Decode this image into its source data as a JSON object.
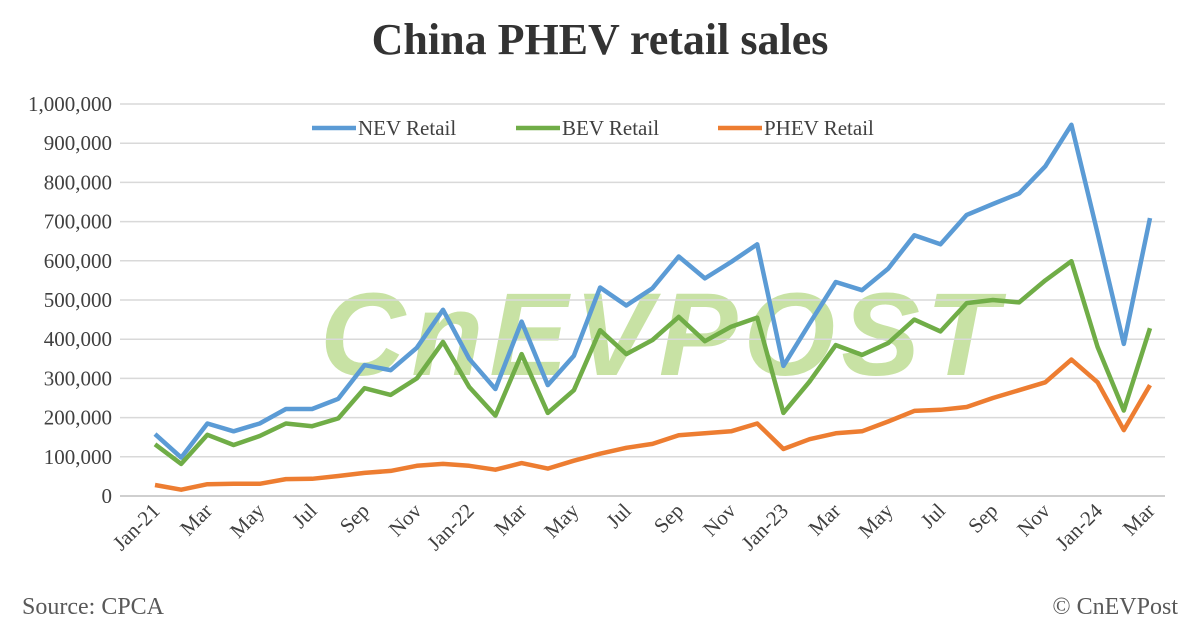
{
  "chart_data": {
    "type": "line",
    "title": "China PHEV retail sales",
    "xlabel": "",
    "ylabel": "",
    "ylim": [
      0,
      1000000
    ],
    "yticks": [
      "0",
      "100,000",
      "200,000",
      "300,000",
      "400,000",
      "500,000",
      "600,000",
      "700,000",
      "800,000",
      "900,000",
      "1,000,000"
    ],
    "xtick_labels": [
      "Jan-21",
      "Mar",
      "May",
      "Jul",
      "Sep",
      "Nov",
      "Jan-22",
      "Mar",
      "May",
      "Jul",
      "Sep",
      "Nov",
      "Jan-23",
      "Mar",
      "May",
      "Jul",
      "Sep",
      "Nov",
      "Jan-24",
      "Mar"
    ],
    "x": [
      "Jan-21",
      "Feb-21",
      "Mar-21",
      "Apr-21",
      "May-21",
      "Jun-21",
      "Jul-21",
      "Aug-21",
      "Sep-21",
      "Oct-21",
      "Nov-21",
      "Dec-21",
      "Jan-22",
      "Feb-22",
      "Mar-22",
      "Apr-22",
      "May-22",
      "Jun-22",
      "Jul-22",
      "Aug-22",
      "Sep-22",
      "Oct-22",
      "Nov-22",
      "Dec-22",
      "Jan-23",
      "Feb-23",
      "Mar-23",
      "Apr-23",
      "May-23",
      "Jun-23",
      "Jul-23",
      "Aug-23",
      "Sep-23",
      "Oct-23",
      "Nov-23",
      "Dec-23",
      "Jan-24",
      "Feb-24",
      "Mar-24"
    ],
    "grid": true,
    "legend_position": "top",
    "series": [
      {
        "name": "NEV Retail",
        "color": "#5b9bd5",
        "values": [
          158000,
          98000,
          185000,
          165000,
          185000,
          222000,
          222000,
          248000,
          334000,
          321000,
          378000,
          475000,
          350000,
          273000,
          445000,
          283000,
          358000,
          532000,
          486000,
          530000,
          611000,
          555000,
          597000,
          642000,
          332000,
          440000,
          546000,
          525000,
          580000,
          665000,
          642000,
          717000,
          745000,
          772000,
          841000,
          947000,
          670000,
          388000,
          709000
        ]
      },
      {
        "name": "BEV Retail",
        "color": "#70ad47",
        "values": [
          132000,
          82000,
          156000,
          130000,
          153000,
          185000,
          178000,
          198000,
          275000,
          258000,
          300000,
          393000,
          278000,
          205000,
          362000,
          212000,
          270000,
          423000,
          362000,
          398000,
          457000,
          395000,
          432000,
          455000,
          212000,
          292000,
          385000,
          360000,
          390000,
          450000,
          420000,
          492000,
          500000,
          494000,
          550000,
          599000,
          380000,
          218000,
          428000
        ]
      },
      {
        "name": "PHEV Retail",
        "color": "#ed7d31",
        "values": [
          28000,
          16000,
          30000,
          31000,
          31000,
          43000,
          44000,
          51000,
          59000,
          64000,
          77000,
          82000,
          77000,
          67000,
          84000,
          70000,
          90000,
          108000,
          123000,
          133000,
          155000,
          160000,
          165000,
          185000,
          120000,
          145000,
          160000,
          165000,
          190000,
          217000,
          220000,
          227000,
          250000,
          270000,
          290000,
          348000,
          290000,
          168000,
          283000
        ]
      }
    ]
  },
  "footer": {
    "source": "Source: CPCA",
    "credit": "© CnEVPost"
  },
  "watermark": "CnEVPOST"
}
